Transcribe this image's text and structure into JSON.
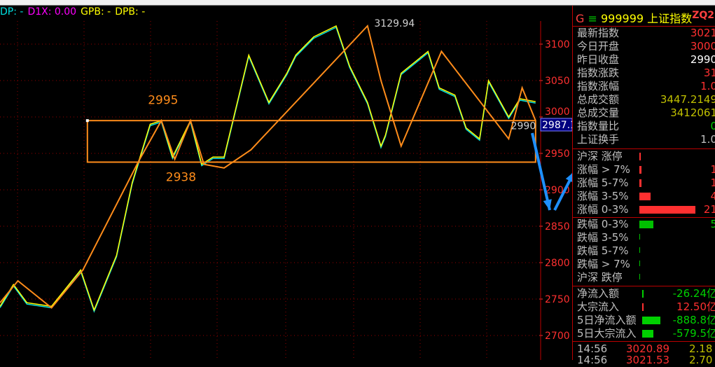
{
  "legend": [
    {
      "text": "DP: -",
      "color": "#00e0e0"
    },
    {
      "text": "D1X: 0.00",
      "color": "#ff00ff"
    },
    {
      "text": "GPB: -",
      "color": "#ffff00"
    },
    {
      "text": "DPB: -",
      "color": "#ffff00"
    }
  ],
  "panel": {
    "header": {
      "prefix": "G",
      "sep": "≡",
      "code": "999999",
      "name": "上证指数",
      "tag": "ZQ2"
    },
    "quote": [
      {
        "label": "最新指数",
        "value": "3021",
        "color": "#ff3030"
      },
      {
        "label": "今日开盘",
        "value": "3000",
        "color": "#ff3030"
      },
      {
        "label": "昨日收盘",
        "value": "2990",
        "color": "#ffffff"
      },
      {
        "label": "指数涨跌",
        "value": "31",
        "color": "#ff3030"
      },
      {
        "label": "指数涨幅",
        "value": "1.0",
        "color": "#ff3030"
      },
      {
        "label": "总成交额",
        "value": "3447.2149",
        "color": "#c0c000"
      },
      {
        "label": "总成交量",
        "value": "3412061",
        "color": "#c0c000"
      },
      {
        "label": "指数量比",
        "value": "0",
        "color": "#00d000"
      },
      {
        "label": "上证换手",
        "value": "1.0",
        "color": "#c0c0c0"
      }
    ],
    "up": [
      {
        "label": "沪深 涨停",
        "value": "",
        "bar": 0.03
      },
      {
        "label": "涨幅 > 7%",
        "value": "1",
        "bar": 0.04
      },
      {
        "label": "涨幅 5-7%",
        "value": "1",
        "bar": 0.04
      },
      {
        "label": "涨幅 3-5%",
        "value": "4",
        "bar": 0.2
      },
      {
        "label": "涨幅 0-3%",
        "value": "21",
        "bar": 1.0
      }
    ],
    "down": [
      {
        "label": "跌幅 0-3%",
        "value": "5",
        "bar": 0.25
      },
      {
        "label": "跌幅 3-5%",
        "value": "",
        "bar": 0
      },
      {
        "label": "跌幅 5-7%",
        "value": "",
        "bar": 0
      },
      {
        "label": "跌幅 > 7%",
        "value": "",
        "bar": 0
      },
      {
        "label": "沪深 跌停",
        "value": "",
        "bar": 0
      }
    ],
    "flows": [
      {
        "label": "净流入额",
        "value": "-26.24亿",
        "color": "#00d000",
        "bar": 0.03
      },
      {
        "label": "大宗流入",
        "value": "12.50亿",
        "color": "#ff3030",
        "bar": 0.02
      },
      {
        "label": "5日净流入额",
        "value": "-888.8亿",
        "color": "#00d000",
        "bar": 1.0
      },
      {
        "label": "5日大宗流入",
        "value": "-579.5亿",
        "color": "#00d000",
        "bar": 0.6
      }
    ],
    "ticks": [
      {
        "time": "14:56",
        "price": "3020.89",
        "vol": "2.18"
      },
      {
        "time": "14:56",
        "price": "3021.53",
        "vol": "2.70"
      }
    ]
  },
  "chart_data": {
    "type": "line",
    "title": "",
    "ylim": [
      2700,
      3140
    ],
    "yticks": [
      2700,
      2750,
      2800,
      2850,
      2900,
      2950,
      3000,
      3050,
      3100
    ],
    "grid": true,
    "price": {
      "x": [
        0,
        6,
        12,
        23,
        36,
        42,
        52,
        59,
        67,
        72,
        77,
        85,
        90,
        95,
        100,
        111,
        120,
        128,
        132,
        140,
        150,
        156,
        164,
        170,
        172,
        179,
        191,
        196,
        203,
        208,
        214,
        218,
        227,
        232,
        239
      ],
      "y": [
        2740,
        2770,
        2745,
        2740,
        2790,
        2735,
        2810,
        2910,
        2990,
        2995,
        2945,
        2995,
        2935,
        2945,
        2945,
        3085,
        3020,
        3060,
        3085,
        3110,
        3125,
        3070,
        3020,
        2960,
        2975,
        3060,
        3090,
        3040,
        3030,
        2985,
        2970,
        3050,
        3000,
        3025,
        3021
      ]
    },
    "trend": {
      "x": [
        0,
        8,
        23,
        37,
        62,
        72,
        78,
        85,
        91,
        100,
        112,
        164,
        170,
        179,
        197,
        227,
        233,
        239
      ],
      "y": [
        2745,
        2775,
        2738,
        2790,
        2940,
        2995,
        2942,
        2995,
        2935,
        2930,
        2955,
        3125,
        3050,
        2960,
        3090,
        2970,
        3040,
        2995
      ]
    },
    "box": {
      "x": [
        39,
        239
      ],
      "y": [
        2938,
        2995
      ]
    },
    "annotations": [
      {
        "text": "3129.94",
        "x": 167,
        "y": 3124
      },
      {
        "text": "2995",
        "x": 66,
        "y": 3018
      },
      {
        "text": "2938",
        "x": 74,
        "y": 2912
      },
      {
        "text": "2990",
        "x": 228,
        "y": 2983
      }
    ],
    "current_label": "2987.1",
    "colors": {
      "axis": "#ff3030",
      "trend": "#ff8c1a",
      "price1": "#ffff00",
      "price2": "#00e0e0",
      "arrow": "#1e90ff"
    }
  }
}
